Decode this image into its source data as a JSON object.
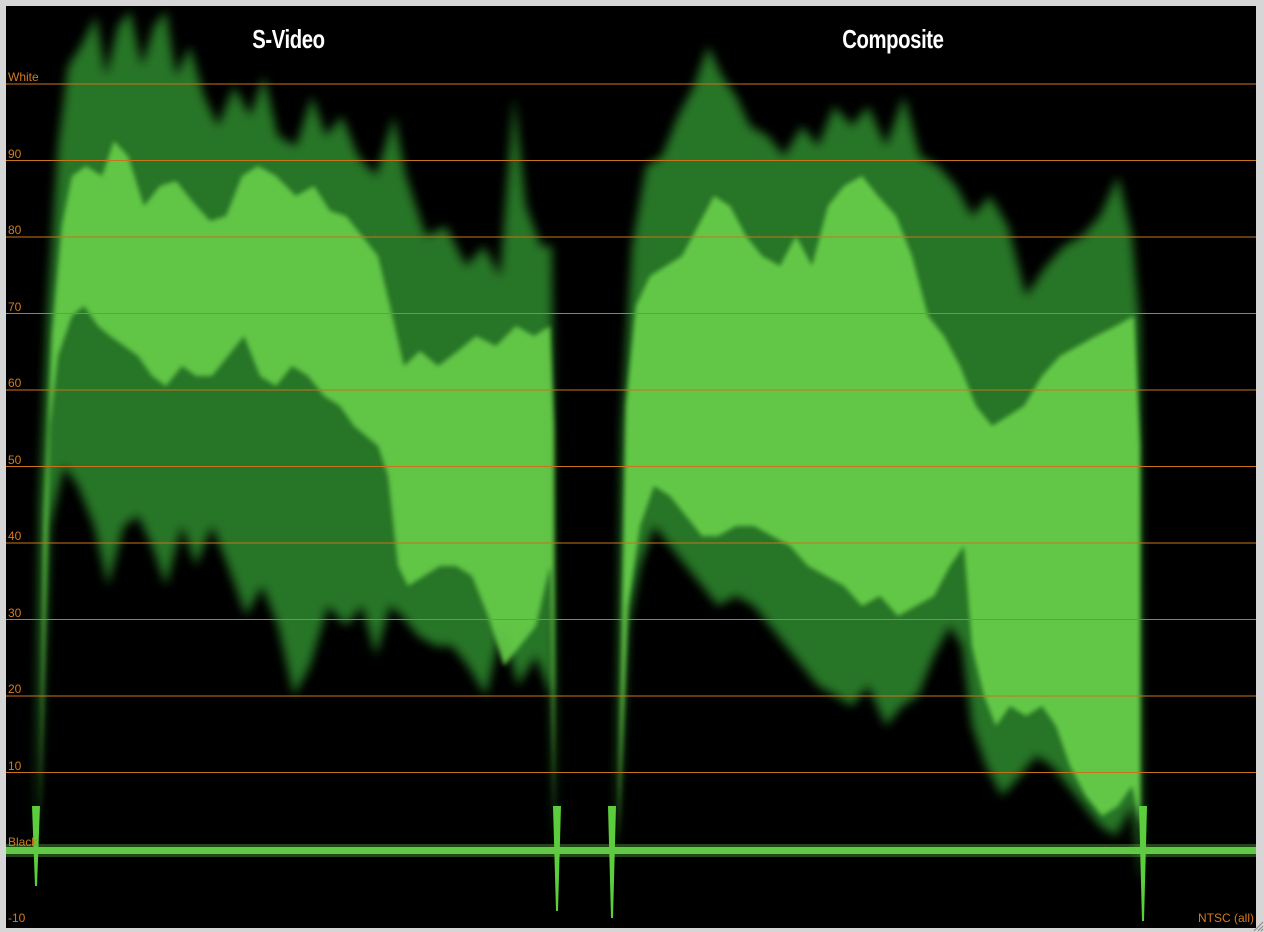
{
  "scope": {
    "panels": [
      {
        "title": "S-Video"
      },
      {
        "title": "Composite"
      }
    ],
    "scale_labels": [
      "White",
      "90",
      "80",
      "70",
      "60",
      "50",
      "40",
      "30",
      "20",
      "10",
      "Black",
      "-10"
    ],
    "standard_label": "NTSC (all)",
    "colors": {
      "background": "#000000",
      "graticule": "#c8741c",
      "trace": "#5ccd3c",
      "trace_dark": "#1f6a1f"
    }
  }
}
